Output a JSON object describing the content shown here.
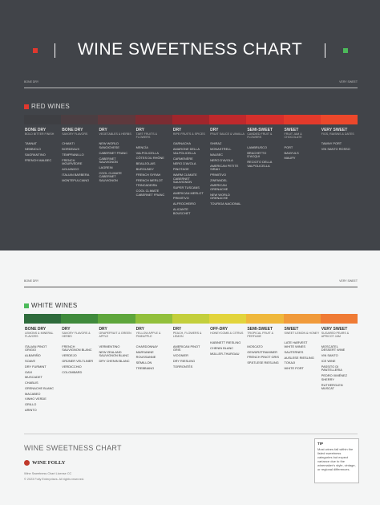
{
  "header": {
    "title": "WINE SWEETNESS CHART"
  },
  "red_wines": {
    "title": "RED WINES",
    "scale": {
      "start": "BONE DRY",
      "end": "VERY SWEET"
    },
    "columns": [
      {
        "level": "BONE DRY",
        "flavor": "BOLD BITTER FINISH",
        "wines": [
          "TANNAT",
          "NEBBIOLO",
          "SAGRANTINO",
          "FRENCH MALBEC"
        ]
      },
      {
        "level": "BONE DRY",
        "flavor": "SAVORY FLAVORS",
        "wines": [
          "CHIANTI",
          "BORDEAUX",
          "TEMPRANILLO",
          "FRENCH MOURVÈDRE",
          "AGLIANICO",
          "ITALIAN BARBERA",
          "MONTEPULCIANO"
        ]
      },
      {
        "level": "DRY",
        "flavor": "VEGETABLES & HERBS",
        "wines": [
          "NEW WORLD SANGIOVESE",
          "CABERNET FRANC",
          "CABERNET SAUVIGNON",
          "LAGREIN",
          "COOL CLIMATE CABERNET SAUVIGNON"
        ]
      },
      {
        "level": "DRY",
        "flavor": "TART FRUITS & FLOWERS",
        "wines": [
          "MENCÍA",
          "VALPOLICELLA",
          "CÔTES DU RHÔNE",
          "BEAUJOLAIS",
          "BURGUNDY",
          "FRENCH SYRAH",
          "FRENCH MERLOT",
          "TRINCADEIRA",
          "COOL CLIMATE CABERNET FRANC"
        ]
      },
      {
        "level": "DRY",
        "flavor": "RIPE FRUITS & SPICES",
        "wines": [
          "GARNACHA",
          "AMARONE DELLA VALPOLICELLA",
          "CARMENÈRE",
          "NERO D'AVOLA",
          "PINOTAGE",
          "WARM CLIMATE CABERNET SAUVIGNON",
          "SUPER TUSCANS",
          "AMERICAN MERLOT",
          "PRIMITIVO",
          "ALFROCHEIRO",
          "ALICANTE BOUSCHET"
        ]
      },
      {
        "level": "DRY",
        "flavor": "FRUIT SAUCE & VANILLA",
        "wines": [
          "SHIRAZ",
          "MONASTRELL",
          "MALBEC",
          "NERO D'AVOLA",
          "AMERICAN PETITE SIRAH",
          "PRIMITIVO",
          "ZINFANDEL",
          "AMERICAN GRENACHE",
          "NEW WORLD GRENACHE",
          "TOURIGA NACIONAL"
        ]
      },
      {
        "level": "SEMI-SWEET",
        "flavor": "CANDIED FRUIT & FLOWERS",
        "wines": [
          "LAMBRUSCO",
          "BRACHETTO D'ACQUI",
          "RECIOTO DELLA VALPOLICELLA"
        ]
      },
      {
        "level": "SWEET",
        "flavor": "FRUIT JAM & CHOCOLATE",
        "wines": [
          "PORT",
          "BANYULS",
          "MAURY"
        ]
      },
      {
        "level": "VERY SWEET",
        "flavor": "FIGS, RAISINS & DATES",
        "wines": [
          "TAWNY PORT",
          "VIN SANTO ROSSO"
        ]
      }
    ]
  },
  "white_wines": {
    "title": "WHITE WINES",
    "scale": {
      "start": "BONE DRY",
      "end": "VERY SWEET"
    },
    "columns": [
      {
        "level": "BONE DRY",
        "flavor": "LEMONS & MINERAL FLAVORS",
        "wines": [
          "ITALIAN PINOT GRIGIO",
          "ALBARIÑO",
          "SOAVE",
          "DRY FURMINT",
          "GAVI",
          "MUSCADET",
          "CHABLIS",
          "GRENACHE BLANC",
          "MACABEO",
          "VINHO VERDE",
          "GRILLO",
          "ARINTO"
        ]
      },
      {
        "level": "DRY",
        "flavor": "SAVORY FLAVORS & HERBS",
        "wines": [
          "FRENCH SAUVIGNON BLANC",
          "VERDEJO",
          "GRÜNER VELTLINER",
          "VERDICCHIO",
          "COLOMBARD"
        ]
      },
      {
        "level": "DRY",
        "flavor": "GRAPEFRUIT & GREEN APPLE",
        "wines": [
          "VERMENTINO",
          "NEW ZEALAND SAUVIGNON BLANC",
          "DRY CHENIN BLANC"
        ]
      },
      {
        "level": "DRY",
        "flavor": "YELLOW APPLE & PINEAPPLE",
        "wines": [
          "CHARDONNAY",
          "MARSANNE",
          "ROUSSANNE",
          "SÉMILLON",
          "TREBBIANO"
        ]
      },
      {
        "level": "DRY",
        "flavor": "PEACH, FLOWERS & LEMON",
        "wines": [
          "AMERICAN PINOT GRIS",
          "VIOGNIER",
          "DRY RIESLING",
          "TORRONTÉS"
        ]
      },
      {
        "level": "OFF-DRY",
        "flavor": "HONEYCOMB & CITRUS",
        "wines": [
          "KABINETT RIESLING",
          "CHENIN BLANC",
          "MÜLLER-THURGAU"
        ]
      },
      {
        "level": "SEMI-SWEET",
        "flavor": "TROPICAL FRUIT & PERFUME",
        "wines": [
          "MOSCATO",
          "GEWÜRZTRAMINER",
          "FRENCH PINOT GRIS",
          "SPÄTLESE RIESLING"
        ]
      },
      {
        "level": "SWEET",
        "flavor": "SWEET LEMON & HONEY",
        "wines": [
          "LATE HARVEST WHITE WINES",
          "SAUTERNES",
          "AUSLESE RIESLING",
          "TOKAJI",
          "WHITE PORT"
        ]
      },
      {
        "level": "VERY SWEET",
        "flavor": "SUGARED PEARS & APRICOT JAM",
        "wines": [
          "MOSCATEL DESSERT WINE",
          "VIN SANTO",
          "ICE WINE",
          "PASSITO DI PANTELLERIA",
          "PEDRO XIMÉNEZ SHERRY",
          "RUTHERGLEN MUSCAT"
        ]
      }
    ]
  },
  "footer": {
    "title": "WINE SWEETNESS CHART",
    "brand": "WINE FOLLY",
    "license": "Wine Sweetness Chart License CC",
    "copyright": "© 2023 Folly Enterprises. All rights reserved.",
    "tip": {
      "title": "TIP",
      "text": "Most wines fall within the listed sweetness categories but expect variance due to the winemaker's style, vintage, or regional differences."
    }
  }
}
